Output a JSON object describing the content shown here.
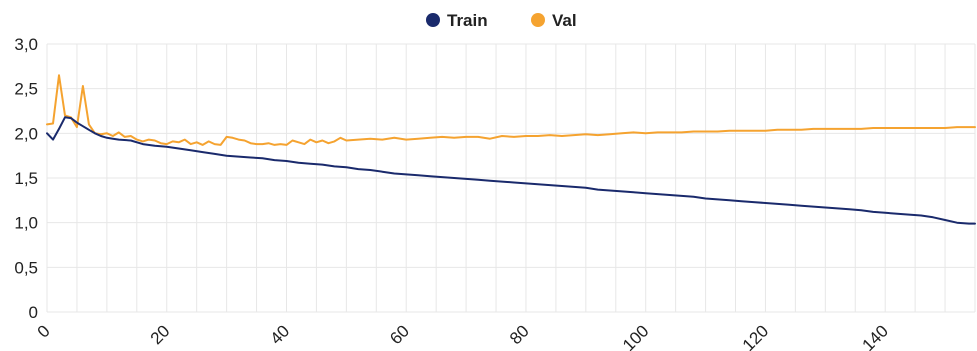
{
  "chart_data": {
    "type": "line",
    "title": "",
    "xlabel": "",
    "ylabel": "",
    "xlim": [
      0,
      155
    ],
    "ylim": [
      0,
      3.0
    ],
    "x_ticks": [
      0,
      20,
      40,
      60,
      80,
      100,
      120,
      140
    ],
    "x_tick_labels": [
      "0",
      "20",
      "40",
      "60",
      "80",
      "100",
      "120",
      "140"
    ],
    "y_ticks": [
      0,
      0.5,
      1.0,
      1.5,
      2.0,
      2.5,
      3.0
    ],
    "y_tick_labels": [
      "0",
      "0,5",
      "1,0",
      "1,5",
      "2,0",
      "2,5",
      "3,0"
    ],
    "grid": true,
    "legend_position": "top-center",
    "series": [
      {
        "name": "Train",
        "color": "#1a2a6c",
        "points": [
          [
            0,
            2.0
          ],
          [
            1,
            1.93
          ],
          [
            2,
            2.05
          ],
          [
            3,
            2.18
          ],
          [
            4,
            2.17
          ],
          [
            5,
            2.12
          ],
          [
            6,
            2.08
          ],
          [
            7,
            2.04
          ],
          [
            8,
            2.0
          ],
          [
            9,
            1.97
          ],
          [
            10,
            1.95
          ],
          [
            11,
            1.94
          ],
          [
            12,
            1.93
          ],
          [
            14,
            1.92
          ],
          [
            16,
            1.88
          ],
          [
            18,
            1.86
          ],
          [
            20,
            1.85
          ],
          [
            22,
            1.83
          ],
          [
            24,
            1.81
          ],
          [
            26,
            1.79
          ],
          [
            28,
            1.77
          ],
          [
            30,
            1.75
          ],
          [
            32,
            1.74
          ],
          [
            34,
            1.73
          ],
          [
            36,
            1.72
          ],
          [
            38,
            1.7
          ],
          [
            40,
            1.69
          ],
          [
            42,
            1.67
          ],
          [
            44,
            1.66
          ],
          [
            46,
            1.65
          ],
          [
            48,
            1.63
          ],
          [
            50,
            1.62
          ],
          [
            52,
            1.6
          ],
          [
            54,
            1.59
          ],
          [
            56,
            1.57
          ],
          [
            58,
            1.55
          ],
          [
            60,
            1.54
          ],
          [
            62,
            1.53
          ],
          [
            64,
            1.52
          ],
          [
            66,
            1.51
          ],
          [
            68,
            1.5
          ],
          [
            70,
            1.49
          ],
          [
            72,
            1.48
          ],
          [
            74,
            1.47
          ],
          [
            76,
            1.46
          ],
          [
            78,
            1.45
          ],
          [
            80,
            1.44
          ],
          [
            82,
            1.43
          ],
          [
            84,
            1.42
          ],
          [
            86,
            1.41
          ],
          [
            88,
            1.4
          ],
          [
            90,
            1.39
          ],
          [
            92,
            1.37
          ],
          [
            94,
            1.36
          ],
          [
            96,
            1.35
          ],
          [
            98,
            1.34
          ],
          [
            100,
            1.33
          ],
          [
            102,
            1.32
          ],
          [
            104,
            1.31
          ],
          [
            106,
            1.3
          ],
          [
            108,
            1.29
          ],
          [
            110,
            1.27
          ],
          [
            112,
            1.26
          ],
          [
            114,
            1.25
          ],
          [
            116,
            1.24
          ],
          [
            118,
            1.23
          ],
          [
            120,
            1.22
          ],
          [
            122,
            1.21
          ],
          [
            124,
            1.2
          ],
          [
            126,
            1.19
          ],
          [
            128,
            1.18
          ],
          [
            130,
            1.17
          ],
          [
            132,
            1.16
          ],
          [
            134,
            1.15
          ],
          [
            136,
            1.14
          ],
          [
            138,
            1.12
          ],
          [
            140,
            1.11
          ],
          [
            142,
            1.1
          ],
          [
            144,
            1.09
          ],
          [
            146,
            1.08
          ],
          [
            148,
            1.06
          ],
          [
            150,
            1.03
          ],
          [
            152,
            1.0
          ],
          [
            154,
            0.99
          ],
          [
            155,
            0.99
          ]
        ]
      },
      {
        "name": "Val",
        "color": "#f5a330",
        "points": [
          [
            0,
            2.1
          ],
          [
            1,
            2.11
          ],
          [
            2,
            2.65
          ],
          [
            3,
            2.2
          ],
          [
            4,
            2.18
          ],
          [
            5,
            2.07
          ],
          [
            6,
            2.53
          ],
          [
            7,
            2.1
          ],
          [
            8,
            2.0
          ],
          [
            9,
            1.99
          ],
          [
            10,
            2.0
          ],
          [
            11,
            1.97
          ],
          [
            12,
            2.01
          ],
          [
            13,
            1.96
          ],
          [
            14,
            1.97
          ],
          [
            15,
            1.93
          ],
          [
            16,
            1.91
          ],
          [
            17,
            1.93
          ],
          [
            18,
            1.92
          ],
          [
            19,
            1.89
          ],
          [
            20,
            1.88
          ],
          [
            21,
            1.91
          ],
          [
            22,
            1.9
          ],
          [
            23,
            1.93
          ],
          [
            24,
            1.88
          ],
          [
            25,
            1.9
          ],
          [
            26,
            1.87
          ],
          [
            27,
            1.91
          ],
          [
            28,
            1.88
          ],
          [
            29,
            1.87
          ],
          [
            30,
            1.96
          ],
          [
            31,
            1.95
          ],
          [
            32,
            1.93
          ],
          [
            33,
            1.92
          ],
          [
            34,
            1.89
          ],
          [
            35,
            1.88
          ],
          [
            36,
            1.88
          ],
          [
            37,
            1.89
          ],
          [
            38,
            1.87
          ],
          [
            39,
            1.88
          ],
          [
            40,
            1.87
          ],
          [
            41,
            1.92
          ],
          [
            42,
            1.9
          ],
          [
            43,
            1.88
          ],
          [
            44,
            1.93
          ],
          [
            45,
            1.9
          ],
          [
            46,
            1.92
          ],
          [
            47,
            1.89
          ],
          [
            48,
            1.91
          ],
          [
            49,
            1.95
          ],
          [
            50,
            1.92
          ],
          [
            52,
            1.93
          ],
          [
            54,
            1.94
          ],
          [
            56,
            1.93
          ],
          [
            58,
            1.95
          ],
          [
            60,
            1.93
          ],
          [
            62,
            1.94
          ],
          [
            64,
            1.95
          ],
          [
            66,
            1.96
          ],
          [
            68,
            1.95
          ],
          [
            70,
            1.96
          ],
          [
            72,
            1.96
          ],
          [
            74,
            1.94
          ],
          [
            76,
            1.97
          ],
          [
            78,
            1.96
          ],
          [
            80,
            1.97
          ],
          [
            82,
            1.97
          ],
          [
            84,
            1.98
          ],
          [
            86,
            1.97
          ],
          [
            88,
            1.98
          ],
          [
            90,
            1.99
          ],
          [
            92,
            1.98
          ],
          [
            94,
            1.99
          ],
          [
            96,
            2.0
          ],
          [
            98,
            2.01
          ],
          [
            100,
            2.0
          ],
          [
            102,
            2.01
          ],
          [
            104,
            2.01
          ],
          [
            106,
            2.01
          ],
          [
            108,
            2.02
          ],
          [
            110,
            2.02
          ],
          [
            112,
            2.02
          ],
          [
            114,
            2.03
          ],
          [
            116,
            2.03
          ],
          [
            118,
            2.03
          ],
          [
            120,
            2.03
          ],
          [
            122,
            2.04
          ],
          [
            124,
            2.04
          ],
          [
            126,
            2.04
          ],
          [
            128,
            2.05
          ],
          [
            130,
            2.05
          ],
          [
            132,
            2.05
          ],
          [
            134,
            2.05
          ],
          [
            136,
            2.05
          ],
          [
            138,
            2.06
          ],
          [
            140,
            2.06
          ],
          [
            142,
            2.06
          ],
          [
            144,
            2.06
          ],
          [
            146,
            2.06
          ],
          [
            148,
            2.06
          ],
          [
            150,
            2.06
          ],
          [
            152,
            2.07
          ],
          [
            155,
            2.07
          ]
        ]
      }
    ]
  }
}
